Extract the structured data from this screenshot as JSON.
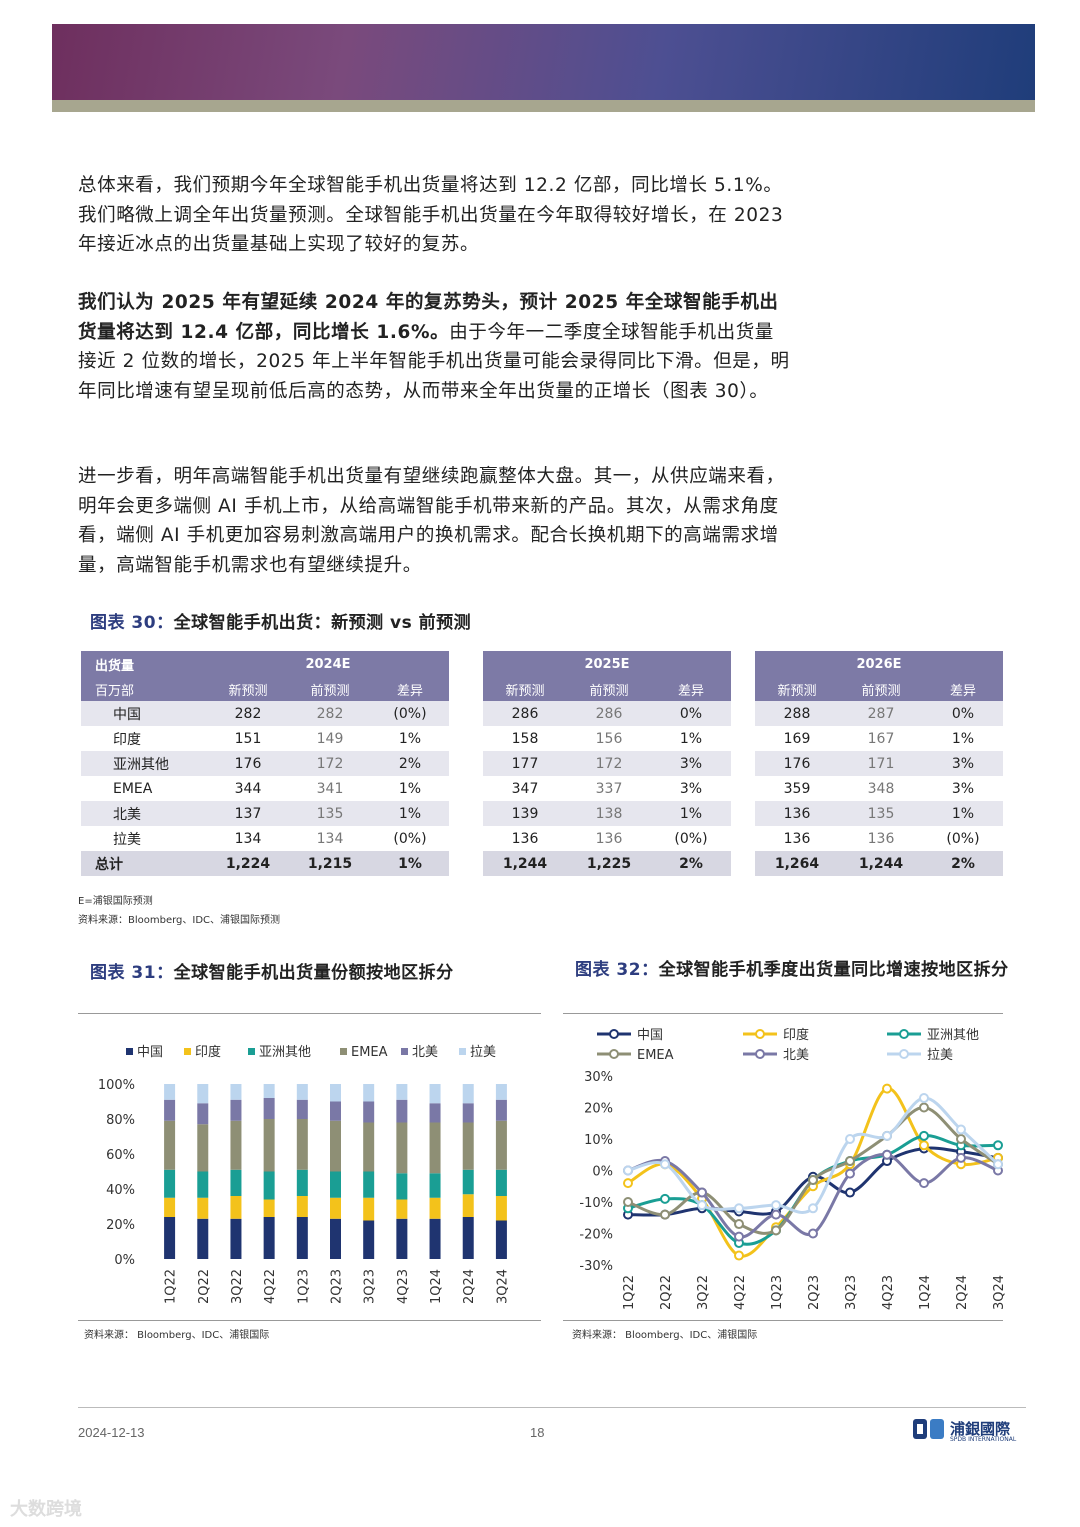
{
  "paragraphs": {
    "p1": "总体来看，我们预期今年全球智能手机出货量将达到 12.2 亿部，同比增长 5.1%。我们略微上调全年出货量预测。全球智能手机出货量在今年取得较好增长，在 2023 年接近冰点的出货量基础上实现了较好的复苏。",
    "p2_bold": "我们认为 2025 年有望延续 2024 年的复苏势头，预计 2025 年全球智能手机出货量将达到 12.4 亿部，同比增长 1.6%。",
    "p2_rest": "由于今年一二季度全球智能手机出货量接近 2 位数的增长，2025 年上半年智能手机出货量可能会录得同比下滑。但是，明年同比增速有望呈现前低后高的态势，从而带来全年出货量的正增长（图表 30）。",
    "p3": "进一步看，明年高端智能手机出货量有望继续跑赢整体大盘。其一，从供应端来看，明年会更多端侧 AI 手机上市，从给高端智能手机带来新的产品。其次，从需求角度看，端侧 AI 手机更加容易刺激高端用户的换机需求。配合长换机期下的高端需求增量，高端智能手机需求也有望继续提升。"
  },
  "fig30": {
    "label": "图表 30：",
    "title": "全球智能手机出货：新预测 vs 前预测",
    "hdr1": "出货量",
    "hdr2": "百万部",
    "years": [
      "2024E",
      "2025E",
      "2026E"
    ],
    "cols": [
      "新预测",
      "前预测",
      "差异"
    ],
    "rows": [
      {
        "name": "中国",
        "v": [
          [
            "282",
            "282",
            "(0%)"
          ],
          [
            "286",
            "286",
            "0%"
          ],
          [
            "288",
            "287",
            "0%"
          ]
        ]
      },
      {
        "name": "印度",
        "v": [
          [
            "151",
            "149",
            "1%"
          ],
          [
            "158",
            "156",
            "1%"
          ],
          [
            "169",
            "167",
            "1%"
          ]
        ]
      },
      {
        "name": "亚洲其他",
        "v": [
          [
            "176",
            "172",
            "2%"
          ],
          [
            "177",
            "172",
            "3%"
          ],
          [
            "176",
            "171",
            "3%"
          ]
        ]
      },
      {
        "name": "EMEA",
        "v": [
          [
            "344",
            "341",
            "1%"
          ],
          [
            "347",
            "337",
            "3%"
          ],
          [
            "359",
            "348",
            "3%"
          ]
        ]
      },
      {
        "name": "北美",
        "v": [
          [
            "137",
            "135",
            "1%"
          ],
          [
            "139",
            "138",
            "1%"
          ],
          [
            "136",
            "135",
            "1%"
          ]
        ]
      },
      {
        "name": "拉美",
        "v": [
          [
            "134",
            "134",
            "(0%)"
          ],
          [
            "136",
            "136",
            "(0%)"
          ],
          [
            "136",
            "136",
            "(0%)"
          ]
        ]
      },
      {
        "name": "总计",
        "v": [
          [
            "1,224",
            "1,215",
            "1%"
          ],
          [
            "1,244",
            "1,225",
            "2%"
          ],
          [
            "1,264",
            "1,244",
            "2%"
          ]
        ]
      }
    ],
    "note1": "E=浦银国际预测",
    "note2": "资料来源：Bloomberg、IDC、浦银国际预测"
  },
  "fig31": {
    "label": "图表 31：",
    "title": "全球智能手机出货量份额按地区拆分",
    "source": "资料来源：    Bloomberg、IDC、浦银国际"
  },
  "fig32": {
    "label": "图表 32：",
    "title": "全球智能手机季度出货量同比增速按地区拆分",
    "source": "资料来源：    Bloomberg、IDC、浦银国际"
  },
  "chart_data": [
    {
      "type": "bar",
      "stacked": true,
      "categories": [
        "1Q22",
        "2Q22",
        "3Q22",
        "4Q22",
        "1Q23",
        "2Q23",
        "3Q23",
        "4Q23",
        "1Q24",
        "2Q24",
        "3Q24"
      ],
      "ylim": [
        0,
        100
      ],
      "yticks": [
        "0%",
        "20%",
        "40%",
        "60%",
        "80%",
        "100%"
      ],
      "legend_position": "top",
      "series": [
        {
          "name": "中国",
          "color": "#1f3470",
          "values": [
            24,
            23,
            23,
            24,
            24,
            23,
            22,
            23,
            23,
            24,
            22
          ]
        },
        {
          "name": "印度",
          "color": "#f3c21b",
          "values": [
            11,
            12,
            13,
            10,
            12,
            12,
            13,
            11,
            12,
            13,
            14
          ]
        },
        {
          "name": "亚洲其他",
          "color": "#1a9e94",
          "values": [
            16,
            15,
            15,
            16,
            15,
            15,
            15,
            15,
            14,
            14,
            15
          ]
        },
        {
          "name": "EMEA",
          "color": "#8e8f75",
          "values": [
            28,
            27,
            28,
            30,
            29,
            29,
            28,
            29,
            29,
            27,
            28
          ]
        },
        {
          "name": "北美",
          "color": "#7a78a6",
          "values": [
            12,
            12,
            12,
            12,
            11,
            11,
            12,
            13,
            11,
            11,
            12
          ]
        },
        {
          "name": "拉美",
          "color": "#bcd5ee",
          "values": [
            9,
            11,
            9,
            8,
            9,
            10,
            10,
            9,
            11,
            11,
            9
          ]
        }
      ]
    },
    {
      "type": "line",
      "x": [
        "1Q22",
        "2Q22",
        "3Q22",
        "4Q22",
        "1Q23",
        "2Q23",
        "3Q23",
        "4Q23",
        "1Q24",
        "2Q24",
        "3Q24"
      ],
      "ylim": [
        -30,
        30
      ],
      "yticks": [
        "-30%",
        "-20%",
        "-10%",
        "0%",
        "10%",
        "20%",
        "30%"
      ],
      "legend_position": "top",
      "series": [
        {
          "name": "中国",
          "color": "#1f3470",
          "values": [
            -14,
            -14,
            -12,
            -13,
            -13,
            -2,
            -7,
            3,
            7,
            6,
            4
          ]
        },
        {
          "name": "印度",
          "color": "#f3c21b",
          "values": [
            -4,
            2,
            -9,
            -27,
            -18,
            -5,
            2,
            26,
            8,
            2,
            4
          ]
        },
        {
          "name": "亚洲其他",
          "color": "#1a9e94",
          "values": [
            -12,
            -9,
            -11,
            -23,
            -19,
            -3,
            3,
            5,
            11,
            8,
            8
          ]
        },
        {
          "name": "EMEA",
          "color": "#8e8f75",
          "values": [
            -10,
            -14,
            -7,
            -17,
            -19,
            -3,
            3,
            11,
            20,
            10,
            2
          ]
        },
        {
          "name": "北美",
          "color": "#7a78a6",
          "values": [
            0,
            3,
            -7,
            -21,
            -14,
            -20,
            -1,
            5,
            -4,
            4,
            0
          ]
        },
        {
          "name": "拉美",
          "color": "#bcd5ee",
          "values": [
            0,
            2,
            -11,
            -12,
            -11,
            -12,
            10,
            11,
            23,
            13,
            2
          ]
        }
      ]
    }
  ],
  "footer": {
    "date": "2024-12-13",
    "page": "18",
    "logo_text": "浦銀國際",
    "logo_sub": "SPDB INTERNATIONAL"
  },
  "watermark": "大数跨境",
  "colors": {
    "accent": "#2d3d7f",
    "table_header": "#7d7aa6"
  }
}
